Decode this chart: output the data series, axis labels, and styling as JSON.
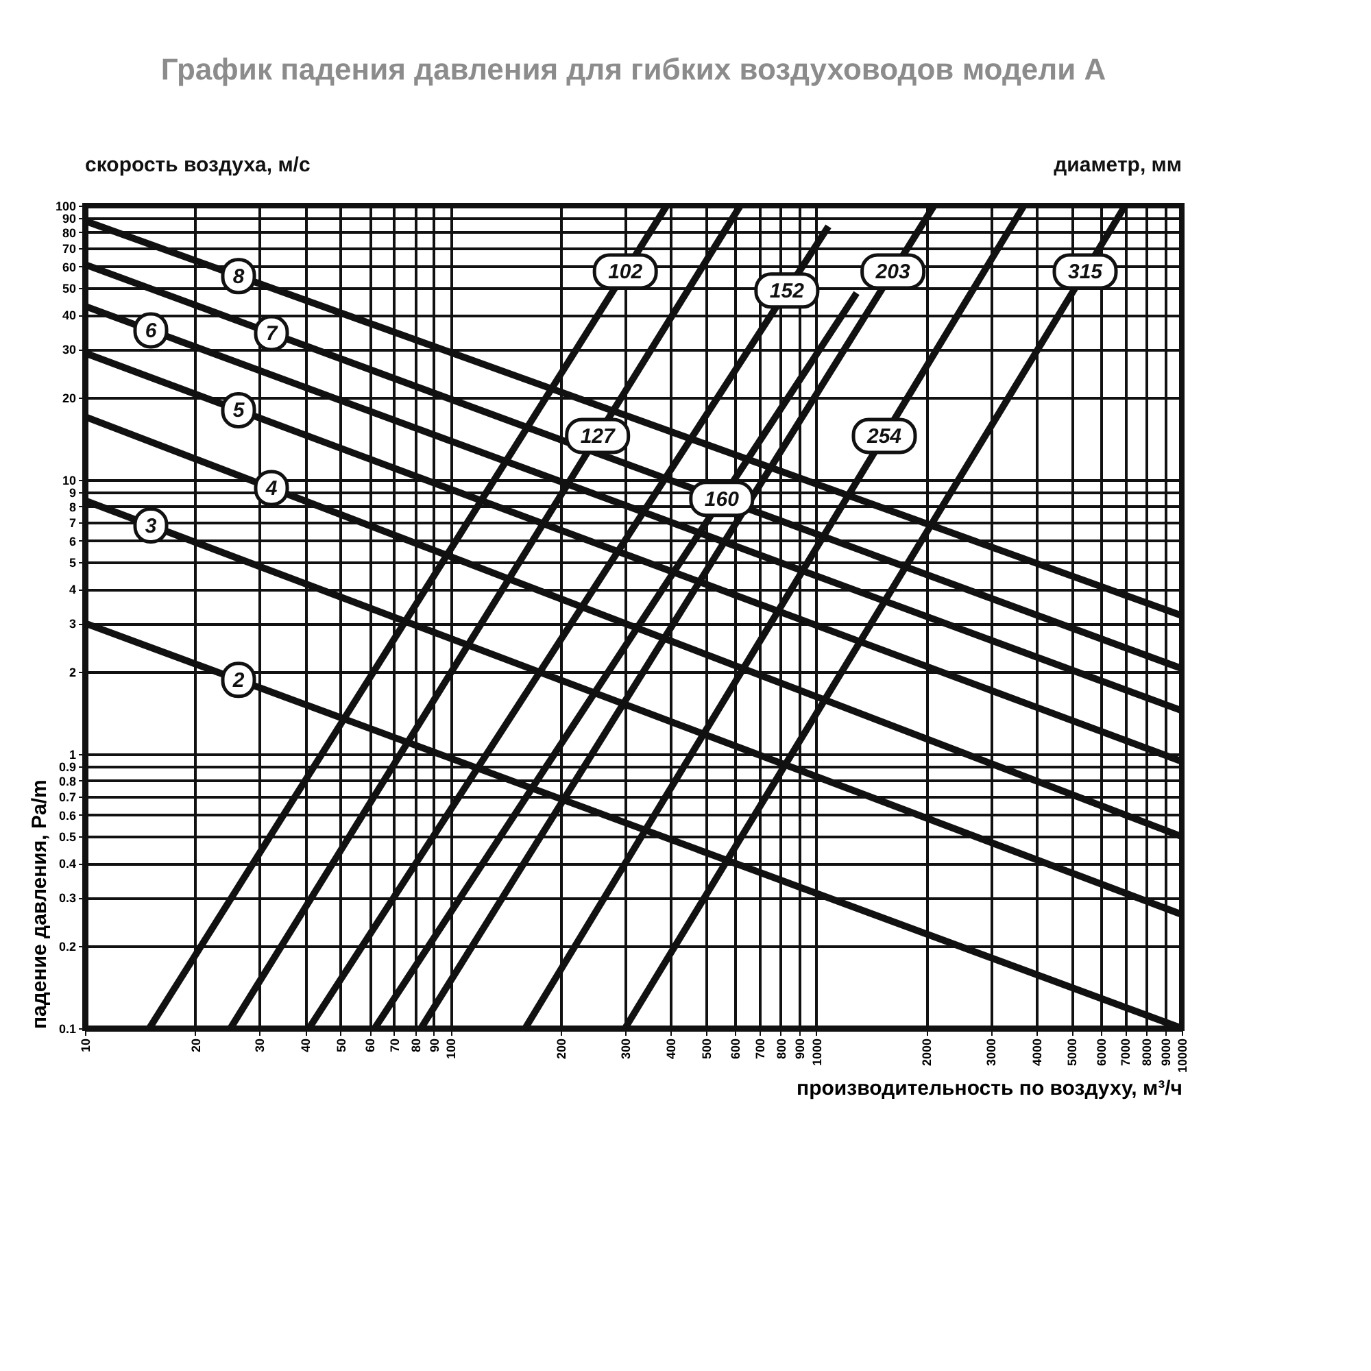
{
  "chart_data": {
    "type": "line",
    "title": "График падения давления для гибких воздуховодов модели A",
    "xlabel": "производительность по воздуху, м³/ч",
    "ylabel": "падение давления, Pa/m",
    "annotations": [
      "скорость воздуха, м/с",
      "диаметр, мм"
    ],
    "log": "xy",
    "grid": true,
    "legend": false,
    "marker": "none",
    "line_style": "solid",
    "xlim": [
      10,
      10000
    ],
    "ylim": [
      0.1,
      100
    ],
    "xticks": [
      10,
      20,
      30,
      40,
      50,
      60,
      70,
      80,
      90,
      100,
      200,
      300,
      400,
      500,
      600,
      700,
      800,
      900,
      1000,
      2000,
      3000,
      4000,
      5000,
      6000,
      7000,
      8000,
      9000,
      10000
    ],
    "yticks": [
      0.1,
      0.2,
      0.3,
      0.4,
      0.5,
      0.6,
      0.7,
      0.8,
      0.9,
      1,
      2,
      3,
      4,
      5,
      6,
      7,
      8,
      9,
      10,
      20,
      30,
      40,
      50,
      60,
      70,
      80,
      90,
      100
    ],
    "series": [
      {
        "name": "8",
        "color": "#111111",
        "x": [
          10,
          10000
        ],
        "values": [
          88,
          3.2
        ]
      },
      {
        "name": "7",
        "color": "#111111",
        "x": [
          10,
          10000
        ],
        "values": [
          61,
          2.05
        ]
      },
      {
        "name": "6",
        "color": "#111111",
        "x": [
          10,
          10000
        ],
        "values": [
          43,
          1.44
        ]
      },
      {
        "name": "5",
        "color": "#111111",
        "x": [
          10,
          10000
        ],
        "values": [
          29,
          0.94
        ]
      },
      {
        "name": "4",
        "color": "#111111",
        "x": [
          10,
          10000
        ],
        "values": [
          17,
          0.5
        ]
      },
      {
        "name": "3",
        "color": "#111111",
        "x": [
          10,
          10000
        ],
        "values": [
          8.4,
          0.26
        ]
      },
      {
        "name": "2",
        "color": "#111111",
        "x": [
          10,
          10000
        ],
        "values": [
          3,
          0.1
        ]
      },
      {
        "name": "102",
        "color": "#111111",
        "x": [
          15,
          390
        ],
        "values": [
          0.1,
          100
        ]
      },
      {
        "name": "127",
        "color": "#111111",
        "x": [
          25,
          620
        ],
        "values": [
          0.1,
          100
        ]
      },
      {
        "name": "152",
        "color": "#111111",
        "x": [
          41,
          1080
        ],
        "values": [
          0.1,
          84
        ]
      },
      {
        "name": "160",
        "color": "#111111",
        "x": [
          62,
          1290
        ],
        "values": [
          0.1,
          48
        ]
      },
      {
        "name": "203",
        "color": "#111111",
        "x": [
          83,
          2100
        ],
        "values": [
          0.1,
          100
        ]
      },
      {
        "name": "254",
        "color": "#111111",
        "x": [
          160,
          3700
        ],
        "values": [
          0.1,
          100
        ]
      },
      {
        "name": "315",
        "color": "#111111",
        "x": [
          300,
          7000
        ],
        "values": [
          0.1,
          100
        ]
      }
    ]
  }
}
